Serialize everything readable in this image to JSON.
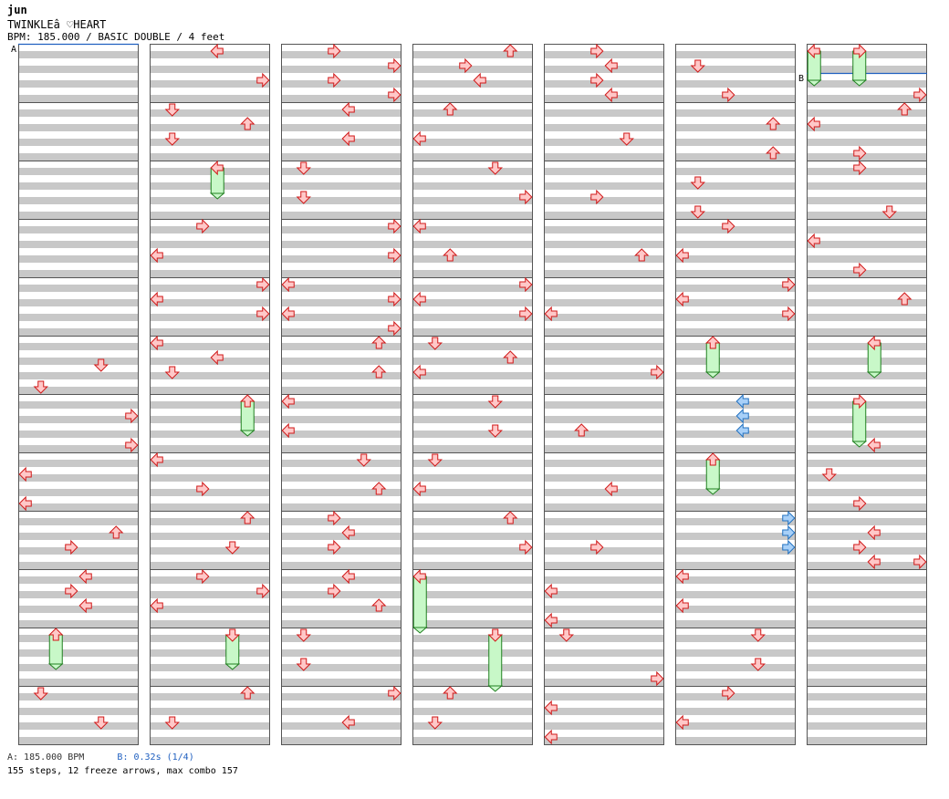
{
  "song": {
    "artist": "jun",
    "title": "TWINKLEâ ♡HEART",
    "info": "BPM: 185.000 / BASIC DOUBLE / 4 feet"
  },
  "markers": {
    "a": "A",
    "b": "B"
  },
  "legend": {
    "bpm": "A: 185.000 BPM",
    "stop": "B: 0.32s (1/4)"
  },
  "stats": "155 steps, 12 freeze arrows, max combo 157",
  "colors": {
    "arrow_fill": "#ffc8c8",
    "arrow_stroke": "#d01818",
    "freeze_fill": "#c8f8c8",
    "freeze_stroke": "#208020",
    "shock_fill": "#a8d0f8",
    "shock_stroke": "#2070c0",
    "stripe": "#c8c8c8",
    "marker_line": "#2060c0"
  },
  "chart": {
    "columns": 7,
    "measures_per_column": 12,
    "lanes": 8,
    "notes": [
      [
        0,
        5,
        6,
        "d"
      ],
      [
        0,
        5,
        12,
        "d"
      ],
      [
        0,
        6,
        4,
        "r"
      ],
      [
        0,
        6,
        12,
        "r"
      ],
      [
        0,
        7,
        4,
        "l"
      ],
      [
        0,
        7,
        12,
        "l"
      ],
      [
        0,
        8,
        4,
        "u"
      ],
      [
        0,
        8,
        8,
        "r"
      ],
      [
        0,
        9,
        0,
        "l"
      ],
      [
        0,
        9,
        4,
        "r"
      ],
      [
        0,
        9,
        8,
        "l"
      ],
      [
        0,
        10,
        0,
        "u",
        "f",
        8
      ],
      [
        0,
        10,
        16,
        "d"
      ],
      [
        0,
        11,
        8,
        "d"
      ],
      [
        1,
        0,
        0,
        "l"
      ],
      [
        1,
        0,
        8,
        "r"
      ],
      [
        1,
        1,
        0,
        "d"
      ],
      [
        1,
        1,
        4,
        "u"
      ],
      [
        1,
        1,
        8,
        "d"
      ],
      [
        1,
        2,
        0,
        "l",
        "f",
        7
      ],
      [
        1,
        3,
        0,
        "r"
      ],
      [
        1,
        3,
        8,
        "l"
      ],
      [
        1,
        4,
        0,
        "r"
      ],
      [
        1,
        4,
        4,
        "l"
      ],
      [
        1,
        4,
        8,
        "r"
      ],
      [
        1,
        5,
        0,
        "l"
      ],
      [
        1,
        5,
        4,
        "l"
      ],
      [
        1,
        5,
        8,
        "d"
      ],
      [
        1,
        6,
        0,
        "u",
        "f",
        8
      ],
      [
        1,
        7,
        0,
        "l"
      ],
      [
        1,
        7,
        8,
        "r"
      ],
      [
        1,
        8,
        0,
        "u"
      ],
      [
        1,
        8,
        8,
        "d"
      ],
      [
        1,
        9,
        0,
        "r"
      ],
      [
        1,
        9,
        4,
        "r"
      ],
      [
        1,
        9,
        8,
        "l"
      ],
      [
        1,
        10,
        0,
        "d",
        "f",
        8
      ],
      [
        1,
        10,
        16,
        "u"
      ],
      [
        1,
        11,
        8,
        "d"
      ],
      [
        2,
        0,
        0,
        "r"
      ],
      [
        2,
        0,
        4,
        "r"
      ],
      [
        2,
        0,
        8,
        "r"
      ],
      [
        2,
        0,
        12,
        "r"
      ],
      [
        2,
        1,
        0,
        "l"
      ],
      [
        2,
        1,
        8,
        "l"
      ],
      [
        2,
        2,
        0,
        "d"
      ],
      [
        2,
        2,
        8,
        "d"
      ],
      [
        2,
        3,
        0,
        "r"
      ],
      [
        2,
        3,
        8,
        "r"
      ],
      [
        2,
        4,
        0,
        "l"
      ],
      [
        2,
        4,
        4,
        "r"
      ],
      [
        2,
        4,
        8,
        "l"
      ],
      [
        2,
        4,
        12,
        "r"
      ],
      [
        2,
        5,
        0,
        "u"
      ],
      [
        2,
        5,
        8,
        "u"
      ],
      [
        2,
        6,
        0,
        "l"
      ],
      [
        2,
        6,
        8,
        "l"
      ],
      [
        2,
        7,
        0,
        "d"
      ],
      [
        2,
        7,
        8,
        "u"
      ],
      [
        2,
        8,
        0,
        "r"
      ],
      [
        2,
        8,
        4,
        "l"
      ],
      [
        2,
        8,
        8,
        "r"
      ],
      [
        2,
        9,
        0,
        "l"
      ],
      [
        2,
        9,
        4,
        "r"
      ],
      [
        2,
        9,
        8,
        "u"
      ],
      [
        2,
        10,
        0,
        "d"
      ],
      [
        2,
        10,
        8,
        "d"
      ],
      [
        2,
        11,
        0,
        "r"
      ],
      [
        2,
        11,
        8,
        "l"
      ],
      [
        3,
        0,
        0,
        "u"
      ],
      [
        3,
        0,
        4,
        "r"
      ],
      [
        3,
        0,
        8,
        "l"
      ],
      [
        3,
        1,
        0,
        "u"
      ],
      [
        3,
        1,
        8,
        "l"
      ],
      [
        3,
        2,
        0,
        "d"
      ],
      [
        3,
        2,
        8,
        "r"
      ],
      [
        3,
        3,
        0,
        "l"
      ],
      [
        3,
        3,
        8,
        "u"
      ],
      [
        3,
        4,
        0,
        "r"
      ],
      [
        3,
        4,
        4,
        "l"
      ],
      [
        3,
        4,
        8,
        "r"
      ],
      [
        3,
        5,
        0,
        "d"
      ],
      [
        3,
        5,
        4,
        "u"
      ],
      [
        3,
        5,
        8,
        "l"
      ],
      [
        3,
        6,
        0,
        "d"
      ],
      [
        3,
        6,
        8,
        "d"
      ],
      [
        3,
        7,
        0,
        "d"
      ],
      [
        3,
        7,
        8,
        "l"
      ],
      [
        3,
        8,
        0,
        "u"
      ],
      [
        3,
        8,
        8,
        "r"
      ],
      [
        3,
        9,
        0,
        "l",
        "f",
        14
      ],
      [
        3,
        10,
        0,
        "d",
        "f",
        14
      ],
      [
        3,
        11,
        0,
        "u"
      ],
      [
        3,
        11,
        8,
        "d"
      ],
      [
        4,
        0,
        0,
        "r"
      ],
      [
        4,
        0,
        4,
        "l"
      ],
      [
        4,
        0,
        8,
        "r"
      ],
      [
        4,
        0,
        12,
        "l"
      ],
      [
        4,
        1,
        8,
        "d"
      ],
      [
        4,
        2,
        8,
        "r"
      ],
      [
        4,
        3,
        8,
        "u"
      ],
      [
        4,
        4,
        8,
        "l"
      ],
      [
        4,
        5,
        8,
        "r"
      ],
      [
        4,
        6,
        8,
        "u"
      ],
      [
        4,
        7,
        8,
        "l"
      ],
      [
        4,
        8,
        8,
        "r"
      ],
      [
        4,
        9,
        4,
        "l"
      ],
      [
        4,
        9,
        12,
        "l"
      ],
      [
        4,
        10,
        0,
        "d"
      ],
      [
        4,
        10,
        12,
        "r"
      ],
      [
        4,
        11,
        4,
        "l"
      ],
      [
        4,
        11,
        12,
        "l"
      ],
      [
        5,
        0,
        4,
        "d"
      ],
      [
        5,
        0,
        12,
        "r"
      ],
      [
        5,
        1,
        4,
        "u"
      ],
      [
        5,
        1,
        12,
        "u"
      ],
      [
        5,
        2,
        4,
        "d"
      ],
      [
        5,
        2,
        12,
        "d"
      ],
      [
        5,
        3,
        0,
        "r"
      ],
      [
        5,
        3,
        8,
        "l"
      ],
      [
        5,
        4,
        0,
        "r"
      ],
      [
        5,
        4,
        4,
        "l"
      ],
      [
        5,
        4,
        8,
        "r"
      ],
      [
        5,
        5,
        0,
        "u",
        "f",
        8
      ],
      [
        5,
        6,
        0,
        "l",
        "s"
      ],
      [
        5,
        6,
        4,
        "l",
        "s"
      ],
      [
        5,
        6,
        8,
        "l",
        "s"
      ],
      [
        5,
        7,
        0,
        "u",
        "f",
        8
      ],
      [
        5,
        8,
        0,
        "r",
        "s"
      ],
      [
        5,
        8,
        4,
        "r",
        "s"
      ],
      [
        5,
        8,
        8,
        "r",
        "s"
      ],
      [
        5,
        9,
        0,
        "l"
      ],
      [
        5,
        9,
        8,
        "l"
      ],
      [
        5,
        10,
        0,
        "d"
      ],
      [
        5,
        10,
        8,
        "d"
      ],
      [
        5,
        11,
        0,
        "r"
      ],
      [
        5,
        11,
        8,
        "l"
      ],
      [
        6,
        0,
        0,
        "r",
        "f",
        8
      ],
      [
        6,
        0,
        0,
        "l",
        "f",
        8
      ],
      [
        6,
        0,
        12,
        "r"
      ],
      [
        6,
        1,
        0,
        "u"
      ],
      [
        6,
        1,
        4,
        "l"
      ],
      [
        6,
        1,
        12,
        "r"
      ],
      [
        6,
        2,
        0,
        "r"
      ],
      [
        6,
        2,
        12,
        "d"
      ],
      [
        6,
        3,
        4,
        "l"
      ],
      [
        6,
        3,
        12,
        "r"
      ],
      [
        6,
        4,
        4,
        "u"
      ],
      [
        6,
        5,
        0,
        "l",
        "f",
        8
      ],
      [
        6,
        6,
        0,
        "r",
        "f",
        11
      ],
      [
        6,
        6,
        12,
        "l"
      ],
      [
        6,
        7,
        4,
        "d"
      ],
      [
        6,
        7,
        12,
        "r"
      ],
      [
        6,
        8,
        4,
        "l"
      ],
      [
        6,
        8,
        8,
        "r"
      ],
      [
        6,
        8,
        12,
        "r"
      ],
      [
        6,
        8,
        12,
        "l"
      ]
    ]
  }
}
